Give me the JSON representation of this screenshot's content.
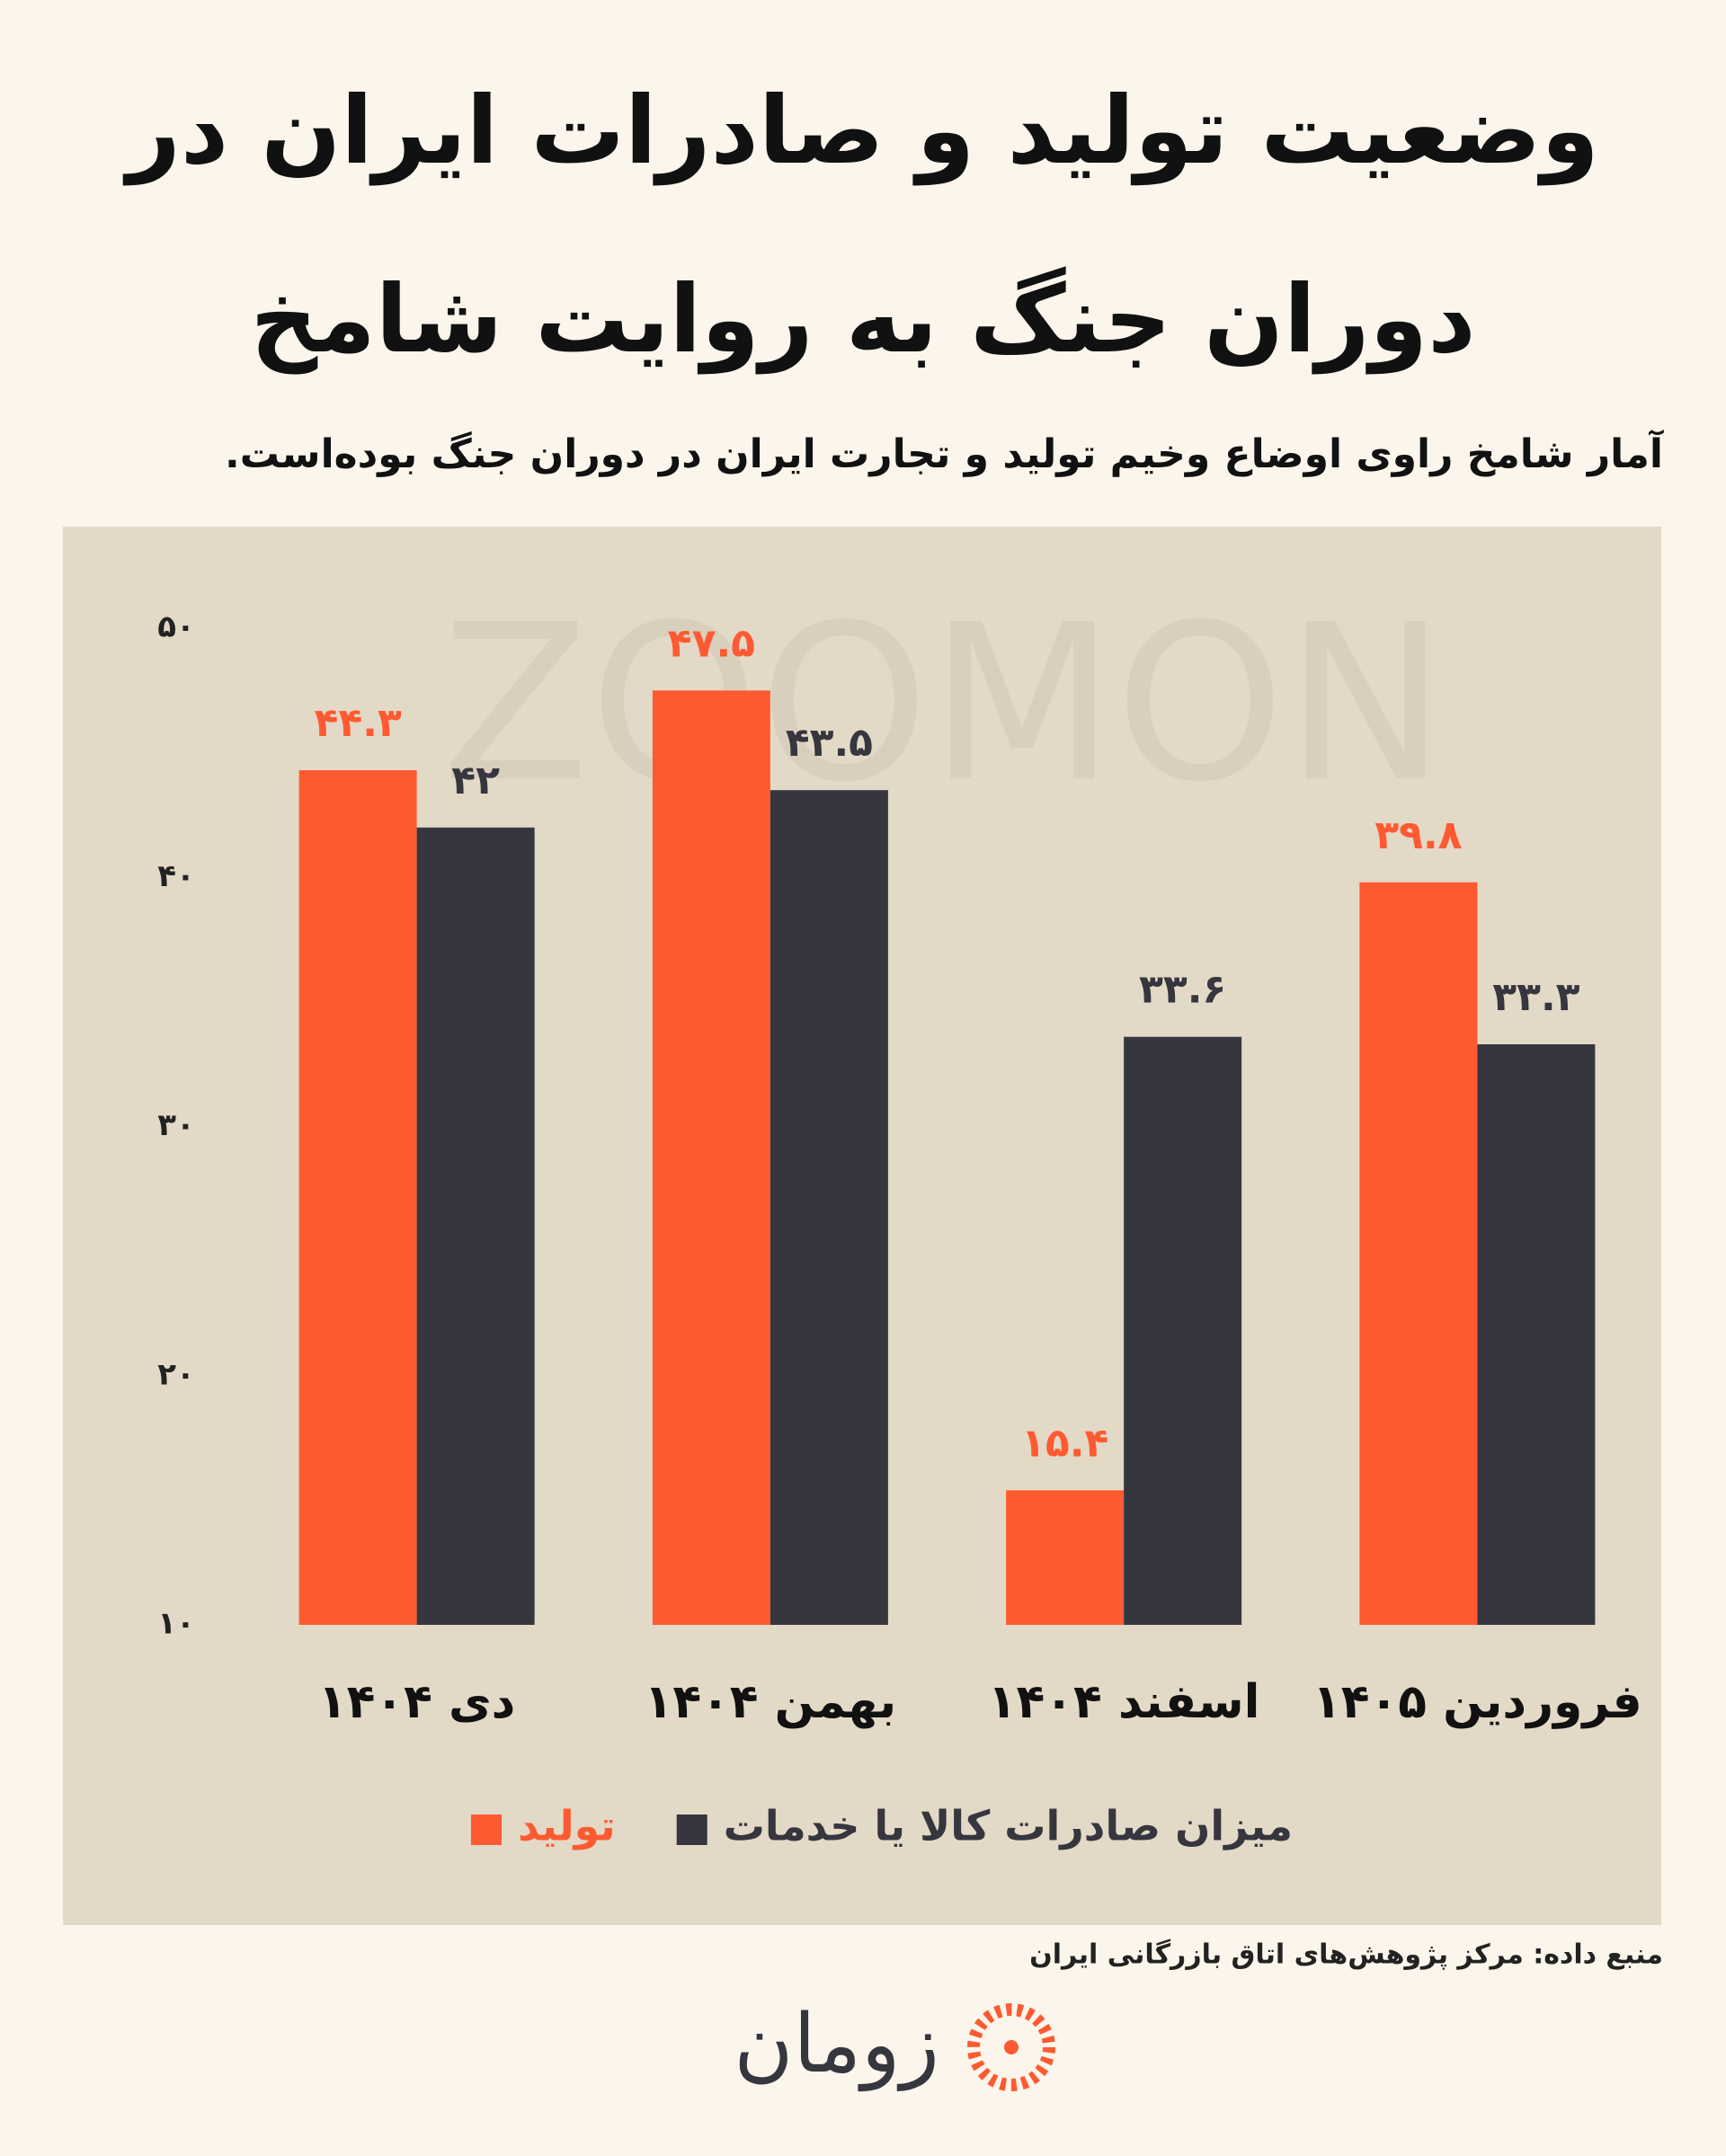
{
  "chart_data": {
    "type": "bar",
    "title": "وضعیت تولید و صادرات ایران در دوران جنگ به روایت شامخ",
    "subtitle": "آمار شامخ راوی اوضاع وخیم تولید و تجارت ایران در دوران جنگ بوده‌است.",
    "categories": [
      "دی ۱۴۰۴",
      "بهمن ۱۴۰۴",
      "اسفند ۱۴۰۴",
      "فروردین ۱۴۰۵"
    ],
    "series": [
      {
        "name": "تولید",
        "color": "#fe5a32",
        "values": [
          44.3,
          47.5,
          15.4,
          39.8
        ],
        "value_labels": [
          "۴۴.۳",
          "۴۷.۵",
          "۱۵.۴",
          "۳۹.۸"
        ]
      },
      {
        "name": "میزان صادرات کالا یا خدمات",
        "color": "#36363f",
        "values": [
          42,
          43.5,
          33.6,
          33.3
        ],
        "value_labels": [
          "۴۲",
          "۴۳.۵",
          "۳۳.۶",
          "۳۳.۳"
        ]
      }
    ],
    "ylim": [
      10,
      50
    ],
    "yticks": [
      {
        "value": 10,
        "label": "۱۰"
      },
      {
        "value": 20,
        "label": "۲۰"
      },
      {
        "value": 30,
        "label": "۳۰"
      },
      {
        "value": 40,
        "label": "۴۰"
      },
      {
        "value": 50,
        "label": "۵۰"
      }
    ],
    "grid": false,
    "source": "منبع داده: مرکز پژوهش‌های اتاق بازرگانی ایران",
    "watermark": "ZOOMON",
    "logo": "زومان"
  }
}
